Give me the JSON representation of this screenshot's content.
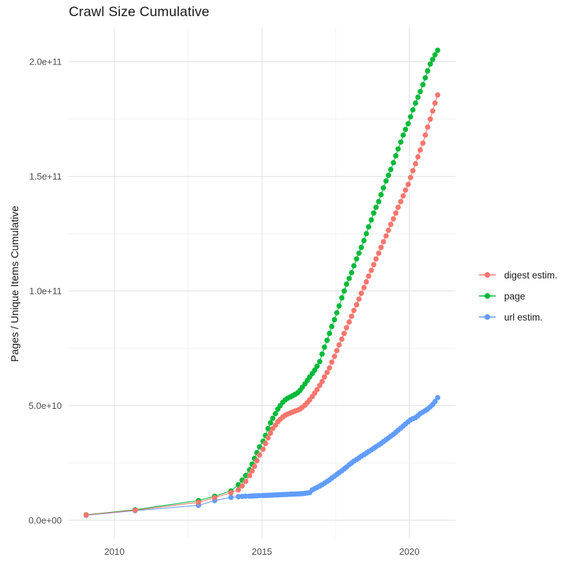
{
  "chart_data": {
    "type": "line",
    "title": "Crawl Size Cumulative",
    "xlabel": "",
    "ylabel": "Pages / Unique Items Cumulative",
    "value_unit": "1 = 1e9 items (billions); y tick labels shown in scientific notation",
    "background": "#ffffff",
    "grid": "on",
    "grid_major_color": "#e2e2e2",
    "grid_minor_color": "#efefef",
    "axis_text_color": "#4d4d4d",
    "x_axis": {
      "range": [
        2008.44,
        2021.56
      ],
      "tick_values": [
        2010,
        2015,
        2020
      ],
      "tick_labels": [
        "2010",
        "2015",
        "2020"
      ],
      "minor_tick_values": [
        2012.5,
        2017.5
      ]
    },
    "y_axis": {
      "range": [
        -8,
        215
      ],
      "tick_values": [
        0,
        50,
        100,
        150,
        200
      ],
      "tick_labels": [
        "0.0e+00",
        "5.0e+10",
        "1.0e+11",
        "1.5e+11",
        "2.0e+11"
      ],
      "minor_tick_values": [
        25,
        75,
        125,
        175
      ]
    },
    "legend": {
      "position": "right",
      "entries": [
        {
          "label": "digest estim.",
          "color": "#F8766D"
        },
        {
          "label": "page",
          "color": "#00BA38"
        },
        {
          "label": "url estim.",
          "color": "#619CFF"
        }
      ]
    },
    "series": [
      {
        "name": "digest estim.",
        "color": "#F8766D",
        "points": [
          [
            2009.04,
            2.3
          ],
          [
            2010.7,
            4.4
          ],
          [
            2012.85,
            7.8
          ],
          [
            2013.4,
            9.9
          ],
          [
            2013.95,
            12
          ],
          [
            2014.2,
            13.3
          ],
          [
            2014.33,
            15
          ],
          [
            2014.45,
            17
          ],
          [
            2014.58,
            19.5
          ],
          [
            2014.67,
            21.5
          ],
          [
            2014.75,
            23.5
          ],
          [
            2014.83,
            26
          ],
          [
            2014.92,
            28.5
          ],
          [
            2015.04,
            31
          ],
          [
            2015.12,
            33.5
          ],
          [
            2015.21,
            36
          ],
          [
            2015.29,
            38
          ],
          [
            2015.37,
            40
          ],
          [
            2015.46,
            41.5
          ],
          [
            2015.54,
            43
          ],
          [
            2015.62,
            44
          ],
          [
            2015.71,
            45
          ],
          [
            2015.79,
            45.8
          ],
          [
            2015.87,
            46.3
          ],
          [
            2015.96,
            46.8
          ],
          [
            2016.04,
            47.2
          ],
          [
            2016.12,
            47.6
          ],
          [
            2016.21,
            48
          ],
          [
            2016.29,
            48.5
          ],
          [
            2016.37,
            49.3
          ],
          [
            2016.46,
            50.2
          ],
          [
            2016.54,
            51.3
          ],
          [
            2016.62,
            52.5
          ],
          [
            2016.71,
            54
          ],
          [
            2016.79,
            55.5
          ],
          [
            2016.87,
            57
          ],
          [
            2016.96,
            58.8
          ],
          [
            2017.04,
            60.5
          ],
          [
            2017.12,
            62.5
          ],
          [
            2017.21,
            64.5
          ],
          [
            2017.29,
            66.5
          ],
          [
            2017.37,
            69
          ],
          [
            2017.46,
            71.5
          ],
          [
            2017.54,
            74
          ],
          [
            2017.62,
            76.5
          ],
          [
            2017.71,
            79
          ],
          [
            2017.79,
            81.5
          ],
          [
            2017.87,
            84
          ],
          [
            2017.96,
            86.5
          ],
          [
            2018.04,
            89
          ],
          [
            2018.12,
            91.5
          ],
          [
            2018.21,
            94
          ],
          [
            2018.29,
            96.5
          ],
          [
            2018.37,
            99
          ],
          [
            2018.46,
            101.5
          ],
          [
            2018.54,
            104
          ],
          [
            2018.62,
            106.5
          ],
          [
            2018.71,
            109
          ],
          [
            2018.79,
            111.5
          ],
          [
            2018.87,
            114
          ],
          [
            2018.96,
            116.5
          ],
          [
            2019.04,
            119
          ],
          [
            2019.12,
            121.5
          ],
          [
            2019.21,
            124
          ],
          [
            2019.29,
            126.5
          ],
          [
            2019.37,
            129
          ],
          [
            2019.46,
            131.5
          ],
          [
            2019.54,
            134
          ],
          [
            2019.62,
            136.5
          ],
          [
            2019.71,
            139
          ],
          [
            2019.79,
            141.5
          ],
          [
            2019.87,
            144
          ],
          [
            2019.96,
            146.5
          ],
          [
            2020.04,
            149.5
          ],
          [
            2020.12,
            152.5
          ],
          [
            2020.21,
            155.5
          ],
          [
            2020.29,
            158.5
          ],
          [
            2020.37,
            161.5
          ],
          [
            2020.46,
            164.5
          ],
          [
            2020.54,
            168
          ],
          [
            2020.62,
            171.5
          ],
          [
            2020.71,
            175
          ],
          [
            2020.79,
            178.5
          ],
          [
            2020.87,
            182
          ],
          [
            2020.96,
            185.5
          ]
        ]
      },
      {
        "name": "page",
        "color": "#00BA38",
        "points": [
          [
            2009.04,
            2.4
          ],
          [
            2010.7,
            4.6
          ],
          [
            2012.85,
            8.6
          ],
          [
            2013.4,
            10.5
          ],
          [
            2013.95,
            12.8
          ],
          [
            2014.2,
            15.5
          ],
          [
            2014.33,
            17.5
          ],
          [
            2014.45,
            19.5
          ],
          [
            2014.58,
            22
          ],
          [
            2014.67,
            24.5
          ],
          [
            2014.75,
            27
          ],
          [
            2014.83,
            29.5
          ],
          [
            2014.92,
            32
          ],
          [
            2015.04,
            34.5
          ],
          [
            2015.12,
            37
          ],
          [
            2015.21,
            40
          ],
          [
            2015.29,
            42.5
          ],
          [
            2015.37,
            44.5
          ],
          [
            2015.46,
            46.5
          ],
          [
            2015.54,
            48.5
          ],
          [
            2015.62,
            50
          ],
          [
            2015.71,
            51.5
          ],
          [
            2015.79,
            52.5
          ],
          [
            2015.87,
            53.2
          ],
          [
            2015.96,
            53.8
          ],
          [
            2016.04,
            54.3
          ],
          [
            2016.12,
            54.9
          ],
          [
            2016.21,
            55.6
          ],
          [
            2016.29,
            56.6
          ],
          [
            2016.37,
            58
          ],
          [
            2016.46,
            59.5
          ],
          [
            2016.54,
            61
          ],
          [
            2016.62,
            62.5
          ],
          [
            2016.71,
            64
          ],
          [
            2016.79,
            65.5
          ],
          [
            2016.87,
            67.2
          ],
          [
            2016.96,
            69.2
          ],
          [
            2017.04,
            72.5
          ],
          [
            2017.12,
            75.5
          ],
          [
            2017.21,
            78.5
          ],
          [
            2017.29,
            81.5
          ],
          [
            2017.37,
            84.5
          ],
          [
            2017.46,
            87.5
          ],
          [
            2017.54,
            90.5
          ],
          [
            2017.62,
            93.5
          ],
          [
            2017.71,
            97
          ],
          [
            2017.79,
            100
          ],
          [
            2017.87,
            103
          ],
          [
            2017.96,
            105.5
          ],
          [
            2018.04,
            108
          ],
          [
            2018.12,
            111
          ],
          [
            2018.21,
            114
          ],
          [
            2018.29,
            116.5
          ],
          [
            2018.37,
            119
          ],
          [
            2018.46,
            122
          ],
          [
            2018.54,
            125
          ],
          [
            2018.62,
            128
          ],
          [
            2018.71,
            131
          ],
          [
            2018.79,
            134
          ],
          [
            2018.87,
            136.5
          ],
          [
            2018.96,
            139
          ],
          [
            2019.04,
            142
          ],
          [
            2019.12,
            145
          ],
          [
            2019.21,
            148
          ],
          [
            2019.29,
            150.5
          ],
          [
            2019.37,
            153
          ],
          [
            2019.46,
            156
          ],
          [
            2019.54,
            159
          ],
          [
            2019.62,
            162
          ],
          [
            2019.71,
            165
          ],
          [
            2019.79,
            168
          ],
          [
            2019.87,
            170.5
          ],
          [
            2019.96,
            173
          ],
          [
            2020.04,
            176
          ],
          [
            2020.12,
            179
          ],
          [
            2020.21,
            182
          ],
          [
            2020.29,
            184.5
          ],
          [
            2020.37,
            187
          ],
          [
            2020.46,
            190
          ],
          [
            2020.54,
            193
          ],
          [
            2020.62,
            196
          ],
          [
            2020.71,
            199
          ],
          [
            2020.79,
            201
          ],
          [
            2020.87,
            203
          ],
          [
            2020.96,
            205
          ]
        ]
      },
      {
        "name": "url estim.",
        "color": "#619CFF",
        "points": [
          [
            2009.04,
            2.2
          ],
          [
            2010.7,
            4.2
          ],
          [
            2012.85,
            6.5
          ],
          [
            2013.4,
            8.6
          ],
          [
            2013.95,
            10
          ],
          [
            2014.2,
            10.3
          ],
          [
            2014.33,
            10.4
          ],
          [
            2014.45,
            10.5
          ],
          [
            2014.58,
            10.55
          ],
          [
            2014.67,
            10.6
          ],
          [
            2014.75,
            10.65
          ],
          [
            2014.83,
            10.7
          ],
          [
            2014.92,
            10.75
          ],
          [
            2015.04,
            10.8
          ],
          [
            2015.12,
            10.85
          ],
          [
            2015.21,
            10.9
          ],
          [
            2015.29,
            10.95
          ],
          [
            2015.37,
            11
          ],
          [
            2015.46,
            11.05
          ],
          [
            2015.54,
            11.1
          ],
          [
            2015.62,
            11.15
          ],
          [
            2015.71,
            11.2
          ],
          [
            2015.79,
            11.25
          ],
          [
            2015.87,
            11.3
          ],
          [
            2015.96,
            11.35
          ],
          [
            2016.04,
            11.4
          ],
          [
            2016.12,
            11.45
          ],
          [
            2016.21,
            11.5
          ],
          [
            2016.29,
            11.55
          ],
          [
            2016.37,
            11.65
          ],
          [
            2016.46,
            11.75
          ],
          [
            2016.54,
            11.9
          ],
          [
            2016.62,
            12.05
          ],
          [
            2016.71,
            13.3
          ],
          [
            2016.79,
            13.8
          ],
          [
            2016.87,
            14.3
          ],
          [
            2016.96,
            14.9
          ],
          [
            2017.04,
            15.5
          ],
          [
            2017.12,
            16.2
          ],
          [
            2017.21,
            16.9
          ],
          [
            2017.29,
            17.6
          ],
          [
            2017.37,
            18.4
          ],
          [
            2017.46,
            19.2
          ],
          [
            2017.54,
            20
          ],
          [
            2017.62,
            20.8
          ],
          [
            2017.71,
            21.6
          ],
          [
            2017.79,
            22.4
          ],
          [
            2017.87,
            23.2
          ],
          [
            2017.96,
            24.2
          ],
          [
            2018.04,
            25
          ],
          [
            2018.12,
            25.8
          ],
          [
            2018.21,
            26.5
          ],
          [
            2018.29,
            27.2
          ],
          [
            2018.37,
            27.9
          ],
          [
            2018.46,
            28.6
          ],
          [
            2018.54,
            29.3
          ],
          [
            2018.62,
            30
          ],
          [
            2018.71,
            30.7
          ],
          [
            2018.79,
            31.4
          ],
          [
            2018.87,
            32.1
          ],
          [
            2018.96,
            32.8
          ],
          [
            2019.04,
            33.5
          ],
          [
            2019.12,
            34.3
          ],
          [
            2019.21,
            35.1
          ],
          [
            2019.29,
            35.9
          ],
          [
            2019.37,
            36.7
          ],
          [
            2019.46,
            37.5
          ],
          [
            2019.54,
            38.4
          ],
          [
            2019.62,
            39.3
          ],
          [
            2019.71,
            40.2
          ],
          [
            2019.79,
            41.1
          ],
          [
            2019.87,
            42
          ],
          [
            2019.96,
            43
          ],
          [
            2020.04,
            43.8
          ],
          [
            2020.12,
            44.3
          ],
          [
            2020.21,
            44.8
          ],
          [
            2020.29,
            45.6
          ],
          [
            2020.37,
            46.5
          ],
          [
            2020.46,
            47.2
          ],
          [
            2020.54,
            47.8
          ],
          [
            2020.62,
            48.5
          ],
          [
            2020.71,
            49.5
          ],
          [
            2020.79,
            50.5
          ],
          [
            2020.87,
            51.8
          ],
          [
            2020.96,
            53.5
          ]
        ]
      }
    ]
  }
}
